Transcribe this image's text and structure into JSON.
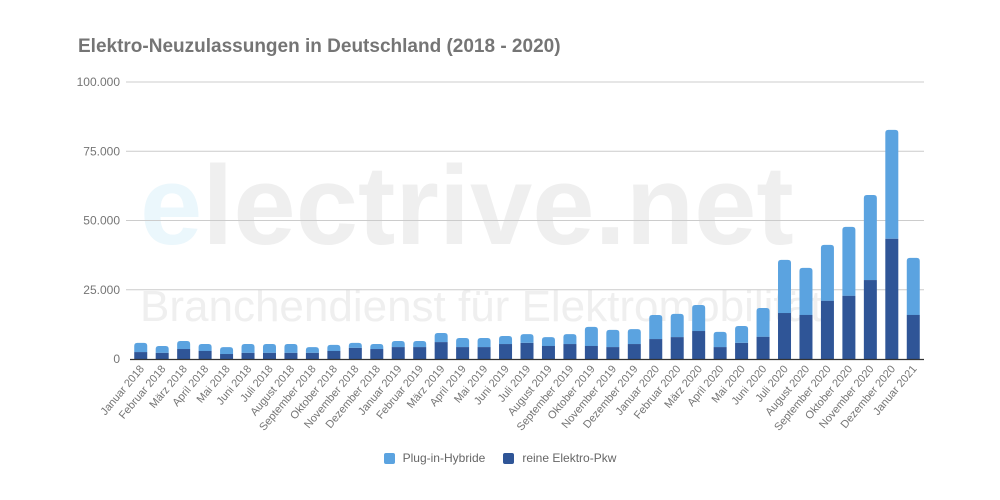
{
  "chart_data": {
    "type": "bar",
    "stacked": true,
    "title": "Elektro-Neuzulassungen in Deutschland (2018 - 2020)",
    "xlabel": "",
    "ylabel": "",
    "ylim": [
      0,
      100000
    ],
    "yticks": [
      0,
      25000,
      50000,
      75000,
      100000
    ],
    "ytick_labels": [
      "0",
      "25.000",
      "50.000",
      "75.000",
      "100.000"
    ],
    "grid": true,
    "legend_position": "bottom",
    "categories": [
      "Januar 2018",
      "Februar 2018",
      "März 2018",
      "April 2018",
      "Mai 2018",
      "Juni 2018",
      "Juli 2018",
      "August 2018",
      "September 2018",
      "Oktober 2018",
      "November 2018",
      "Dezember 2018",
      "Januar 2019",
      "Februar 2019",
      "März 2019",
      "April 2019",
      "Mai 2019",
      "Juni 2019",
      "Juli 2019",
      "August 2019",
      "September 2019",
      "Oktober 2019",
      "November 2019",
      "Dezember 2019",
      "Januar 2020",
      "Februar 2020",
      "März 2020",
      "April 2020",
      "Mai 2020",
      "Juni 2020",
      "Juli 2020",
      "August 2020",
      "September 2020",
      "Oktober 2020",
      "November 2020",
      "Dezember 2020",
      "Januar 2021"
    ],
    "series": [
      {
        "name": "reine Elektro-Pkw",
        "color": "#2F5597",
        "values": [
          2500,
          2200,
          3600,
          2900,
          1800,
          2200,
          2200,
          2200,
          2200,
          2900,
          4000,
          3600,
          4300,
          4300,
          6100,
          4300,
          4300,
          5400,
          5800,
          4700,
          5400,
          4700,
          4300,
          5400,
          7200,
          7900,
          10100,
          4300,
          5800,
          8000,
          16600,
          15900,
          21000,
          22800,
          28500,
          43400,
          15900
        ]
      },
      {
        "name": "Plug-in-Hybride",
        "color": "#5BA3E0",
        "values": [
          3300,
          2500,
          2900,
          2500,
          2500,
          3200,
          3200,
          3200,
          2100,
          2200,
          1800,
          1800,
          2200,
          2200,
          3300,
          3300,
          3300,
          2900,
          3200,
          3200,
          3600,
          6900,
          6200,
          5400,
          8700,
          8400,
          9400,
          5500,
          6100,
          10400,
          19200,
          17000,
          20200,
          24900,
          30700,
          39300,
          20600
        ]
      }
    ]
  },
  "watermark": {
    "brand_first": "e",
    "brand_rest": "lectrive.net",
    "tagline": "Branchendienst für Elektromobilität"
  }
}
